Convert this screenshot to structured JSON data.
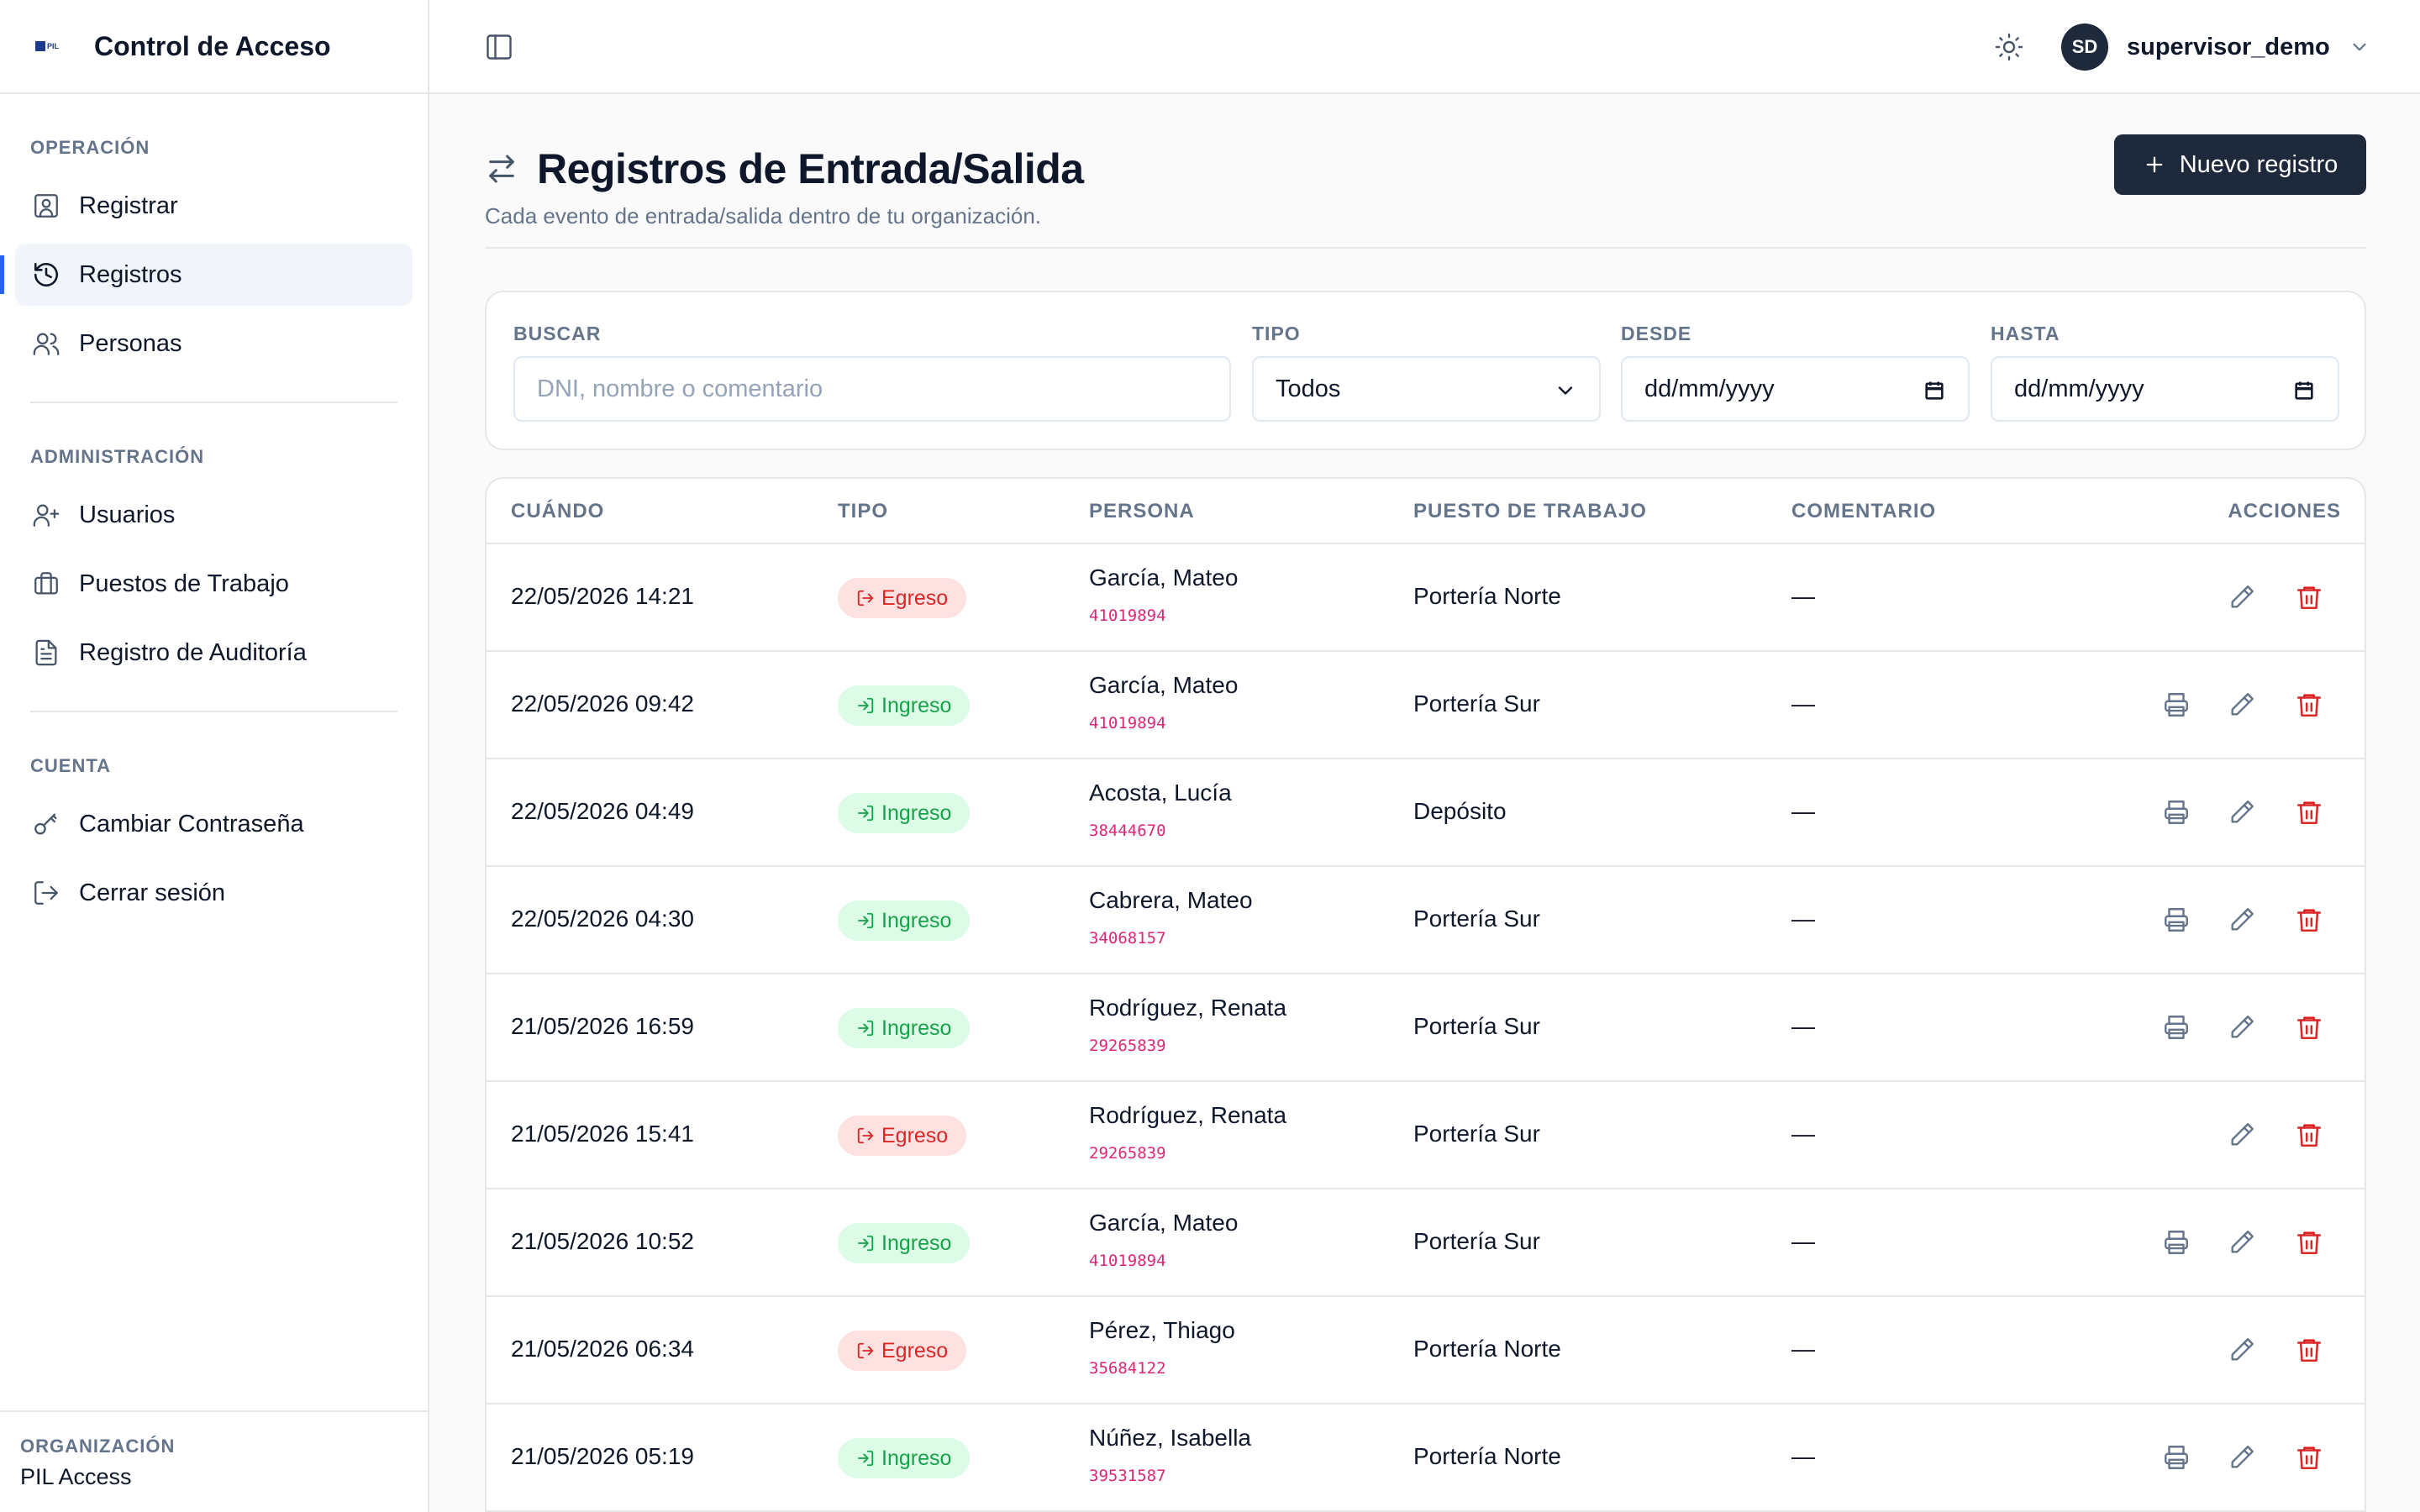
{
  "app": {
    "title": "Control de Acceso",
    "logo_text": "PIL"
  },
  "sidebar": {
    "sections": [
      {
        "label": "OPERACIÓN",
        "items": [
          {
            "label": "Registrar",
            "icon": "user-badge-icon"
          },
          {
            "label": "Registros",
            "icon": "history-icon",
            "active": true
          },
          {
            "label": "Personas",
            "icon": "users-icon"
          }
        ]
      },
      {
        "label": "ADMINISTRACIÓN",
        "items": [
          {
            "label": "Usuarios",
            "icon": "user-plus-icon"
          },
          {
            "label": "Puestos de Trabajo",
            "icon": "briefcase-icon"
          },
          {
            "label": "Registro de Auditoría",
            "icon": "file-text-icon"
          }
        ]
      },
      {
        "label": "CUENTA",
        "items": [
          {
            "label": "Cambiar Contraseña",
            "icon": "key-icon"
          },
          {
            "label": "Cerrar sesión",
            "icon": "logout-icon"
          }
        ]
      }
    ],
    "footer": {
      "label": "ORGANIZACIÓN",
      "value": "PIL Access"
    }
  },
  "topbar": {
    "user": {
      "initials": "SD",
      "name": "supervisor_demo"
    }
  },
  "page": {
    "title": "Registros de Entrada/Salida",
    "subtitle": "Cada evento de entrada/salida dentro de tu organización.",
    "new_button": "Nuevo registro"
  },
  "filters": {
    "search": {
      "label": "BUSCAR",
      "placeholder": "DNI, nombre o comentario"
    },
    "type": {
      "label": "TIPO",
      "value": "Todos"
    },
    "from": {
      "label": "DESDE",
      "value": "dd/mm/yyyy"
    },
    "to": {
      "label": "HASTA",
      "value": "dd/mm/yyyy"
    }
  },
  "table": {
    "columns": [
      "CUÁNDO",
      "TIPO",
      "PERSONA",
      "PUESTO DE TRABAJO",
      "COMENTARIO",
      "ACCIONES"
    ],
    "rows": [
      {
        "when": "22/05/2026 14:21",
        "type": "Egreso",
        "name": "García, Mateo",
        "dni": "41019894",
        "post": "Portería Norte",
        "comment": "—",
        "printable": false
      },
      {
        "when": "22/05/2026 09:42",
        "type": "Ingreso",
        "name": "García, Mateo",
        "dni": "41019894",
        "post": "Portería Sur",
        "comment": "—",
        "printable": true
      },
      {
        "when": "22/05/2026 04:49",
        "type": "Ingreso",
        "name": "Acosta, Lucía",
        "dni": "38444670",
        "post": "Depósito",
        "comment": "—",
        "printable": true
      },
      {
        "when": "22/05/2026 04:30",
        "type": "Ingreso",
        "name": "Cabrera, Mateo",
        "dni": "34068157",
        "post": "Portería Sur",
        "comment": "—",
        "printable": true
      },
      {
        "when": "21/05/2026 16:59",
        "type": "Ingreso",
        "name": "Rodríguez, Renata",
        "dni": "29265839",
        "post": "Portería Sur",
        "comment": "—",
        "printable": true
      },
      {
        "when": "21/05/2026 15:41",
        "type": "Egreso",
        "name": "Rodríguez, Renata",
        "dni": "29265839",
        "post": "Portería Sur",
        "comment": "—",
        "printable": false
      },
      {
        "when": "21/05/2026 10:52",
        "type": "Ingreso",
        "name": "García, Mateo",
        "dni": "41019894",
        "post": "Portería Sur",
        "comment": "—",
        "printable": true
      },
      {
        "when": "21/05/2026 06:34",
        "type": "Egreso",
        "name": "Pérez, Thiago",
        "dni": "35684122",
        "post": "Portería Norte",
        "comment": "—",
        "printable": false
      },
      {
        "when": "21/05/2026 05:19",
        "type": "Ingreso",
        "name": "Núñez, Isabella",
        "dni": "39531587",
        "post": "Portería Norte",
        "comment": "—",
        "printable": true
      }
    ]
  },
  "colors": {
    "primary_button": "#1e293b",
    "active_indicator": "#2563eb",
    "ingreso_bg": "#dcfce7",
    "ingreso_fg": "#16a34a",
    "egreso_bg": "#fee2e2",
    "egreso_fg": "#dc2626",
    "dni": "#db2777",
    "delete": "#dc2626"
  }
}
